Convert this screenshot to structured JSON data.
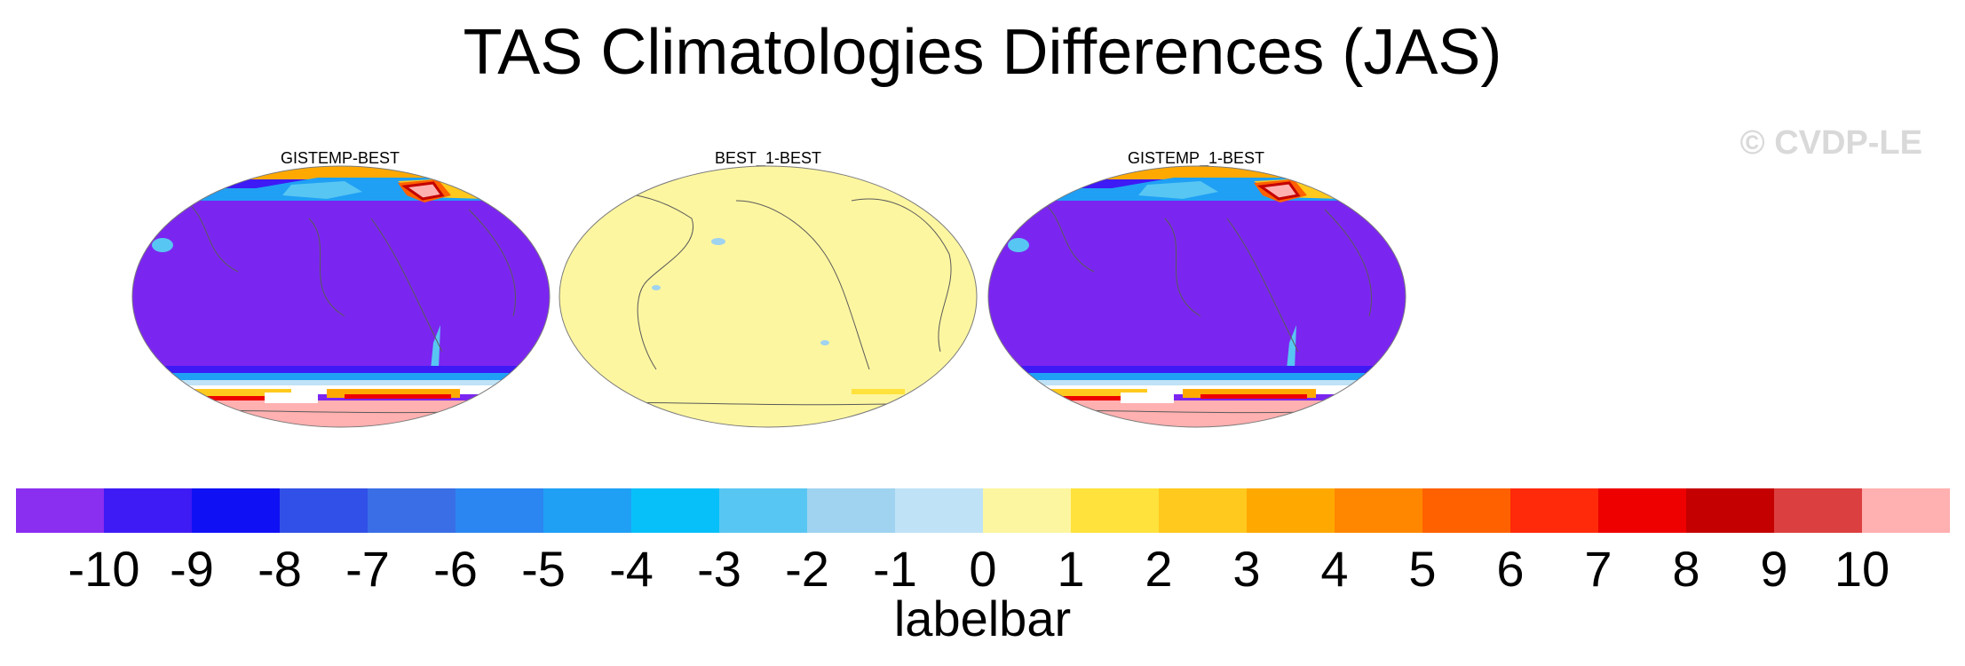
{
  "title": "TAS Climatologies Differences (JAS)",
  "watermark": "© CVDP-LE",
  "panels": [
    {
      "label": "GISTEMP-BEST",
      "scheme": "cold-bias"
    },
    {
      "label": "BEST_1-BEST",
      "scheme": "near-zero"
    },
    {
      "label": "GISTEMP_1-BEST",
      "scheme": "cold-bias"
    }
  ],
  "colorbar": {
    "title": "labelbar",
    "labels": [
      "-10",
      "-9",
      "-8",
      "-7",
      "-6",
      "-5",
      "-4",
      "-3",
      "-2",
      "-1",
      "0",
      "1",
      "2",
      "3",
      "4",
      "5",
      "6",
      "7",
      "8",
      "9",
      "10"
    ],
    "colors": [
      "#8a2ef0",
      "#3e1af5",
      "#1010f5",
      "#3150e8",
      "#3a6ee6",
      "#2b86f2",
      "#1fa0f5",
      "#08c0f9",
      "#58c6f2",
      "#9fd3f0",
      "#bfe2f6",
      "#fdf6a0",
      "#ffe23c",
      "#ffc91e",
      "#ffa900",
      "#ff8700",
      "#ff6100",
      "#ff2a0a",
      "#ee0000",
      "#c40000",
      "#dc3f3f",
      "#ffb0b0"
    ]
  }
}
